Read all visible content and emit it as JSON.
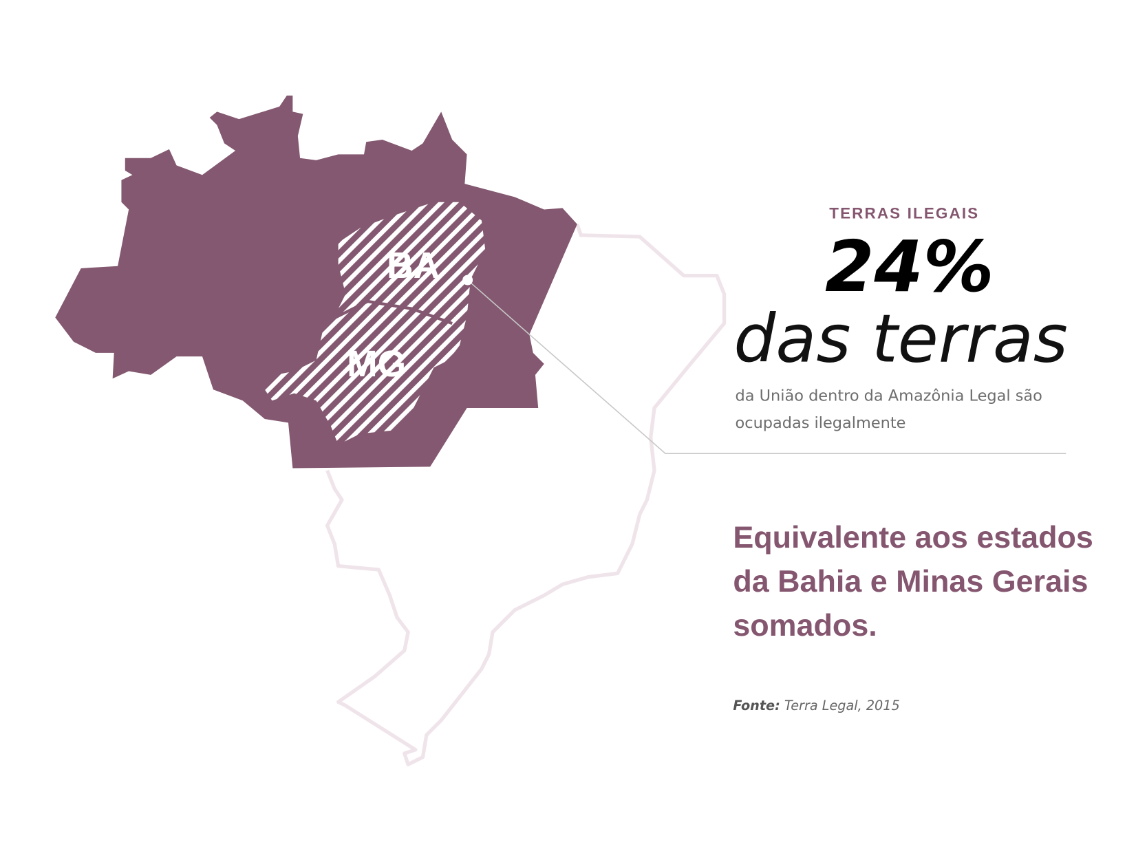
{
  "map": {
    "labels": [
      "BA",
      "MG"
    ]
  },
  "header": {
    "kicker": "TERRAS ILEGAIS",
    "headline": "24%",
    "subheadline": "das terras",
    "description": [
      "da União dentro da Amazônia Legal são",
      "ocupadas ilegalmente"
    ]
  },
  "statement": [
    "Equivalente aos estados",
    "da Bahia e Minas Gerais",
    "somados."
  ],
  "source": {
    "label": "Fonte:",
    "text": "Terra Legal, 2015"
  }
}
